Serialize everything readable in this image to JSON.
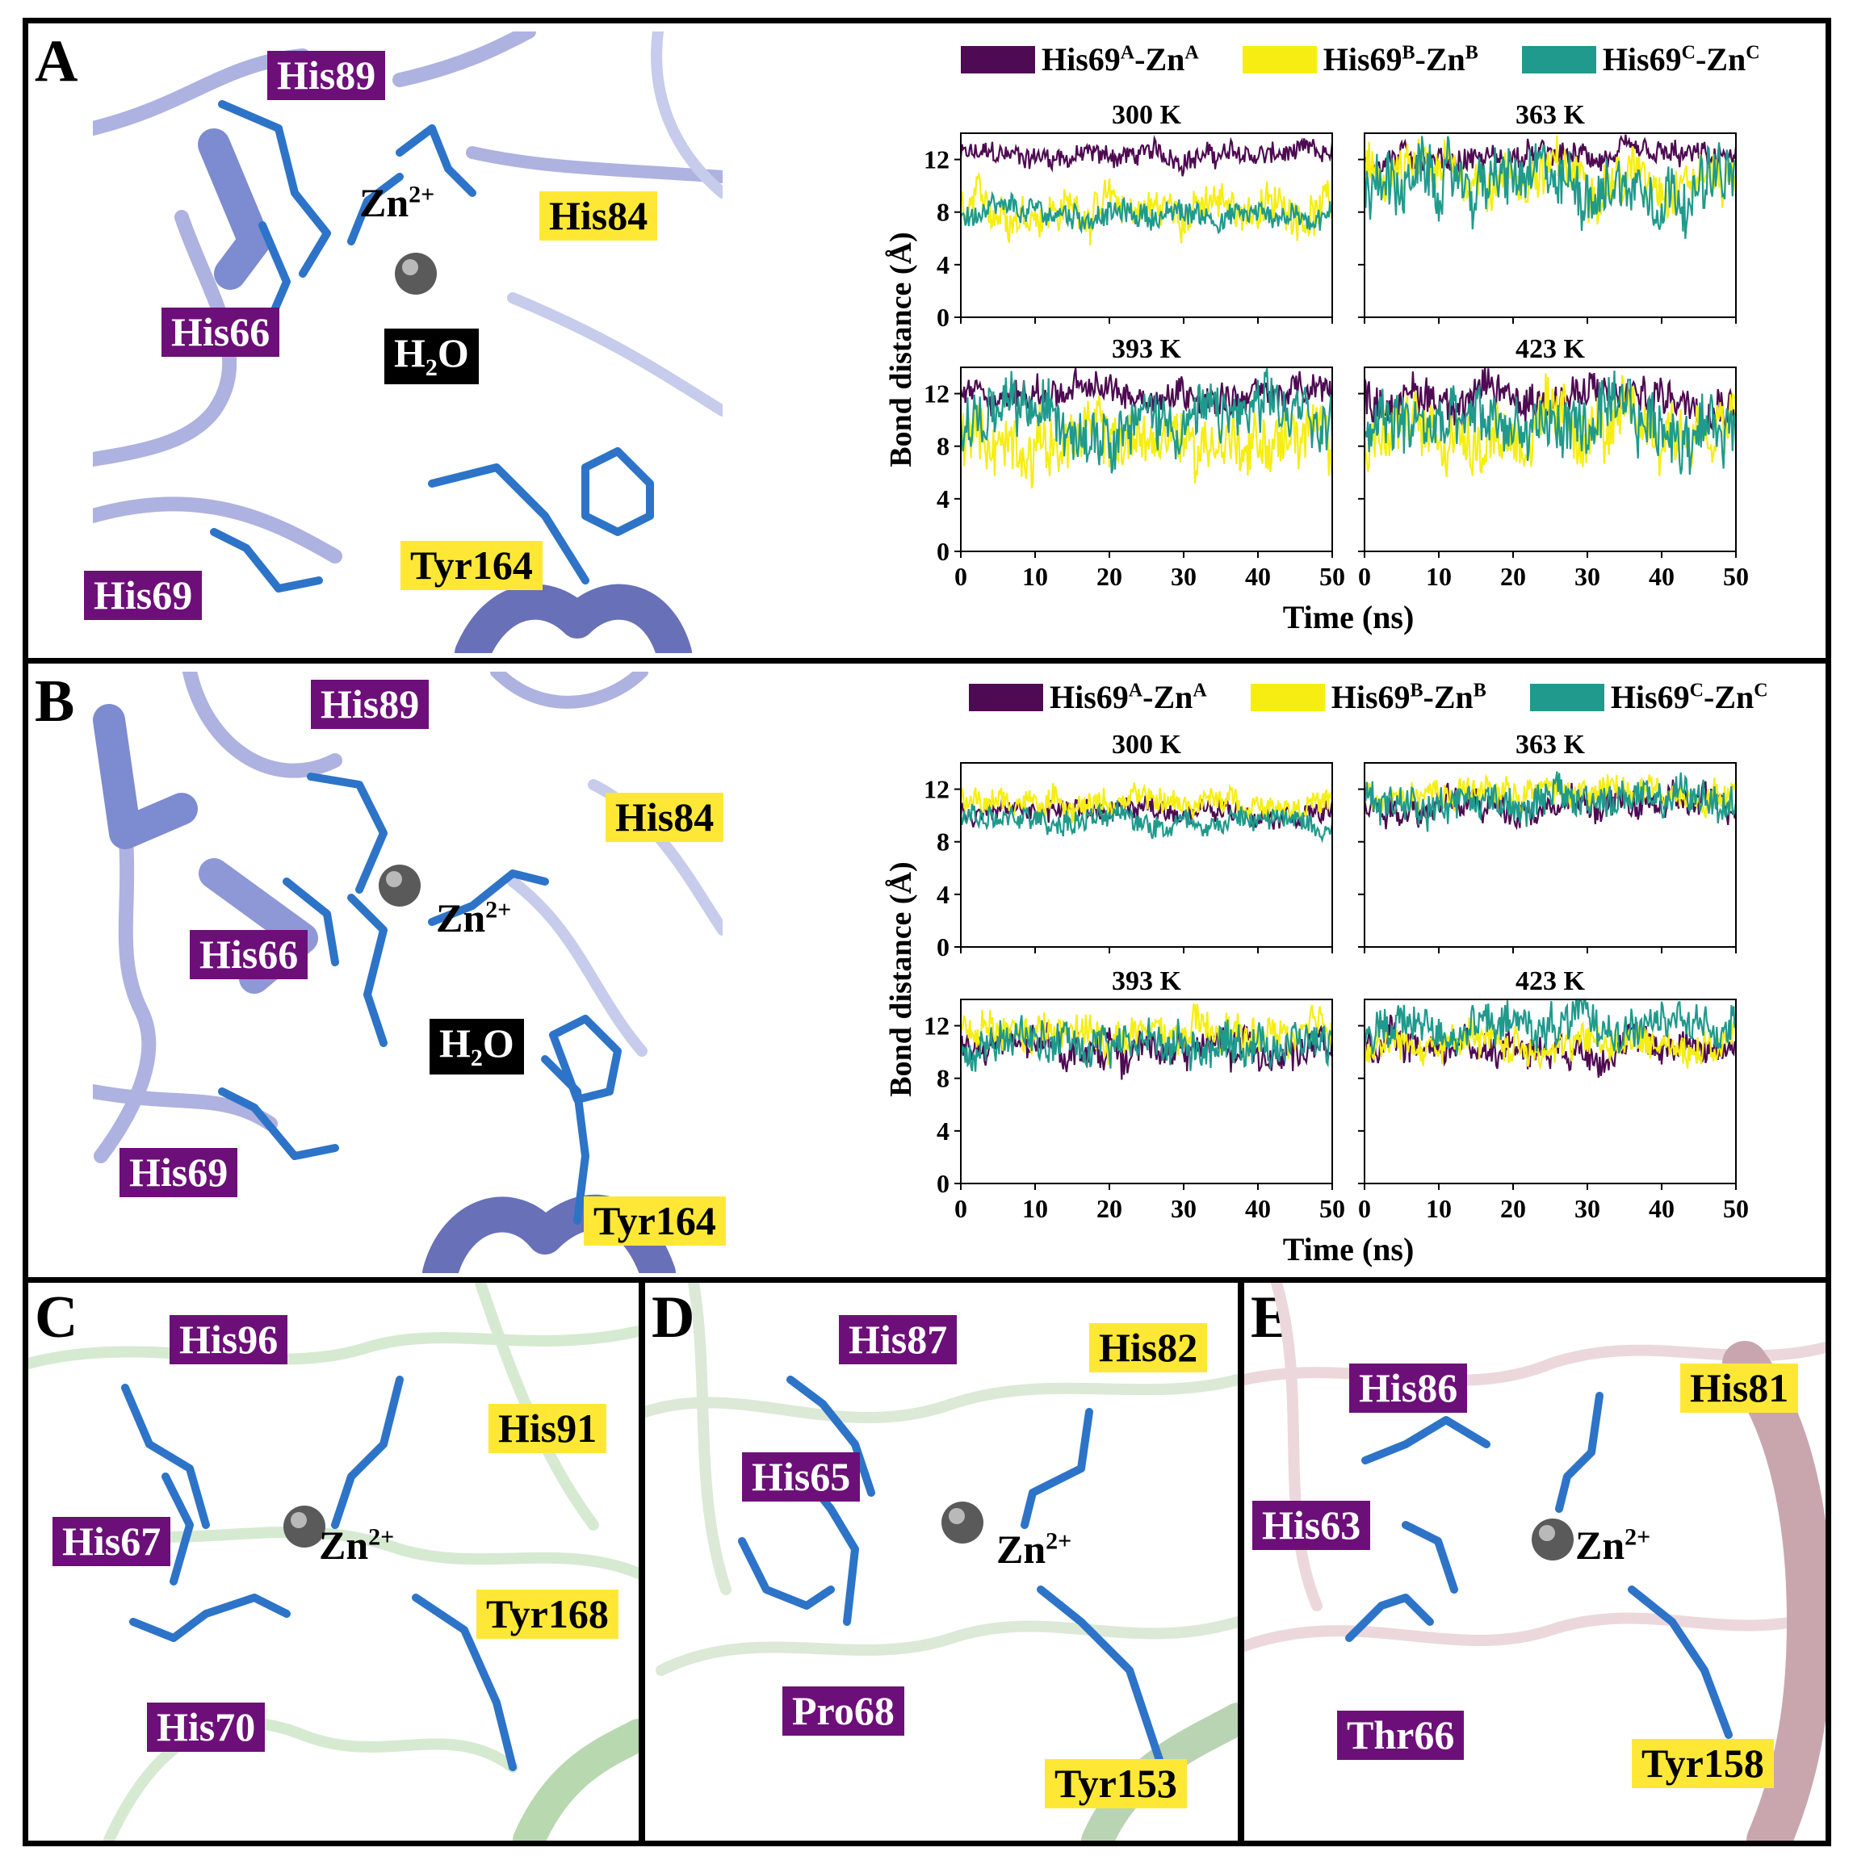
{
  "panels": {
    "A": {
      "letter": "A",
      "labels": {
        "his89": "His89",
        "zn": "Zn",
        "zn_charge": "2+",
        "his84": "His84",
        "his66": "His66",
        "water_h": "H",
        "water_sub": "2",
        "water_o": "O",
        "tyr164": "Tyr164",
        "his69": "His69"
      }
    },
    "B": {
      "letter": "B",
      "labels": {
        "his89": "His89",
        "his84": "His84",
        "zn": "Zn",
        "zn_charge": "2+",
        "his66": "His66",
        "water_h": "H",
        "water_sub": "2",
        "water_o": "O",
        "his69": "His69",
        "tyr164": "Tyr164"
      }
    },
    "C": {
      "letter": "C",
      "labels": {
        "his96": "His96",
        "his91": "His91",
        "his67": "His67",
        "zn": "Zn",
        "zn_charge": "2+",
        "tyr168": "Tyr168",
        "his70": "His70"
      }
    },
    "D": {
      "letter": "D",
      "labels": {
        "his87": "His87",
        "his82": "His82",
        "his65": "His65",
        "zn": "Zn",
        "zn_charge": "2+",
        "pro68": "Pro68",
        "tyr153": "Tyr153"
      }
    },
    "E": {
      "letter": "E",
      "labels": {
        "his86": "His86",
        "his81": "His81",
        "his63": "His63",
        "zn": "Zn",
        "zn_charge": "2+",
        "thr66": "Thr66",
        "tyr158": "Tyr158"
      }
    }
  },
  "legend": {
    "items": [
      {
        "res": "His69",
        "sup1": "A",
        "sep": "-Zn",
        "sup2": "A",
        "color": "#4e0a52"
      },
      {
        "res": "His69",
        "sup1": "B",
        "sep": "-Zn",
        "sup2": "B",
        "color": "#f6ee12"
      },
      {
        "res": "His69",
        "sup1": "C",
        "sep": "-Zn",
        "sup2": "C",
        "color": "#1f9a8c"
      }
    ]
  },
  "chart_data": [
    {
      "type": "line",
      "panel": "A",
      "title": "300 K",
      "xlabel": "Time (ns)",
      "ylabel": "Bond distance (Å)",
      "xlim": [
        0,
        50
      ],
      "ylim": [
        0,
        14
      ],
      "xticks": [
        0,
        10,
        20,
        30,
        40,
        50
      ],
      "yticks": [
        0,
        4,
        8,
        12
      ],
      "series": [
        {
          "name": "His69A-ZnA",
          "mean": 12.3,
          "noise": 0.9
        },
        {
          "name": "His69B-ZnB",
          "mean": 8.3,
          "noise": 1.6
        },
        {
          "name": "His69C-ZnC",
          "mean": 7.8,
          "noise": 1.0
        }
      ]
    },
    {
      "type": "line",
      "panel": "A",
      "title": "363 K",
      "xlim": [
        0,
        50
      ],
      "ylim": [
        0,
        14
      ],
      "xticks": [
        0,
        10,
        20,
        30,
        40,
        50
      ],
      "yticks": [
        0,
        4,
        8,
        12
      ],
      "series": [
        {
          "name": "His69A-ZnA",
          "mean": 12.1,
          "noise": 1.0
        },
        {
          "name": "His69B-ZnB",
          "mean": 10.8,
          "noise": 2.0
        },
        {
          "name": "His69C-ZnC",
          "mean": 10.2,
          "noise": 2.4
        }
      ]
    },
    {
      "type": "line",
      "panel": "A",
      "title": "393 K",
      "xlim": [
        0,
        50
      ],
      "ylim": [
        0,
        14
      ],
      "xticks": [
        0,
        10,
        20,
        30,
        40,
        50
      ],
      "yticks": [
        0,
        4,
        8,
        12
      ],
      "series": [
        {
          "name": "His69A-ZnA",
          "mean": 12.0,
          "noise": 1.3
        },
        {
          "name": "His69B-ZnB",
          "mean": 8.5,
          "noise": 2.4
        },
        {
          "name": "His69C-ZnC",
          "mean": 10.2,
          "noise": 2.3
        }
      ]
    },
    {
      "type": "line",
      "panel": "A",
      "title": "423 K",
      "xlim": [
        0,
        50
      ],
      "ylim": [
        0,
        14
      ],
      "xticks": [
        0,
        10,
        20,
        30,
        40,
        50
      ],
      "yticks": [
        0,
        4,
        8,
        12
      ],
      "series": [
        {
          "name": "His69A-ZnA",
          "mean": 11.8,
          "noise": 1.6
        },
        {
          "name": "His69B-ZnB",
          "mean": 9.2,
          "noise": 2.6
        },
        {
          "name": "His69C-ZnC",
          "mean": 9.5,
          "noise": 2.6
        }
      ]
    },
    {
      "type": "line",
      "panel": "B",
      "title": "300 K",
      "xlabel": "Time (ns)",
      "ylabel": "Bond distance (Å)",
      "xlim": [
        0,
        50
      ],
      "ylim": [
        0,
        14
      ],
      "xticks": [
        0,
        10,
        20,
        30,
        40,
        50
      ],
      "yticks": [
        0,
        4,
        8,
        12
      ],
      "series": [
        {
          "name": "His69A-ZnA",
          "mean": 10.4,
          "noise": 0.9
        },
        {
          "name": "His69B-ZnB",
          "mean": 11.0,
          "noise": 1.0
        },
        {
          "name": "His69C-ZnC",
          "mean": 9.6,
          "noise": 1.0
        }
      ]
    },
    {
      "type": "line",
      "panel": "B",
      "title": "363 K",
      "xlim": [
        0,
        50
      ],
      "ylim": [
        0,
        14
      ],
      "xticks": [
        0,
        10,
        20,
        30,
        40,
        50
      ],
      "yticks": [
        0,
        4,
        8,
        12
      ],
      "series": [
        {
          "name": "His69A-ZnA",
          "mean": 10.8,
          "noise": 1.2
        },
        {
          "name": "His69B-ZnB",
          "mean": 11.8,
          "noise": 1.2
        },
        {
          "name": "His69C-ZnC",
          "mean": 11.2,
          "noise": 1.5
        }
      ]
    },
    {
      "type": "line",
      "panel": "B",
      "title": "393 K",
      "xlim": [
        0,
        50
      ],
      "ylim": [
        0,
        14
      ],
      "xticks": [
        0,
        10,
        20,
        30,
        40,
        50
      ],
      "yticks": [
        0,
        4,
        8,
        12
      ],
      "series": [
        {
          "name": "His69A-ZnA",
          "mean": 10.3,
          "noise": 1.4
        },
        {
          "name": "His69B-ZnB",
          "mean": 11.2,
          "noise": 1.5
        },
        {
          "name": "His69C-ZnC",
          "mean": 10.8,
          "noise": 1.6
        }
      ]
    },
    {
      "type": "line",
      "panel": "B",
      "title": "423 K",
      "xlim": [
        0,
        50
      ],
      "ylim": [
        0,
        14
      ],
      "xticks": [
        0,
        10,
        20,
        30,
        40,
        50
      ],
      "yticks": [
        0,
        4,
        8,
        12
      ],
      "series": [
        {
          "name": "His69A-ZnA",
          "mean": 10.5,
          "noise": 1.3
        },
        {
          "name": "His69B-ZnB",
          "mean": 10.6,
          "noise": 1.4
        },
        {
          "name": "His69C-ZnC",
          "mean": 12.0,
          "noise": 1.6
        }
      ]
    }
  ]
}
